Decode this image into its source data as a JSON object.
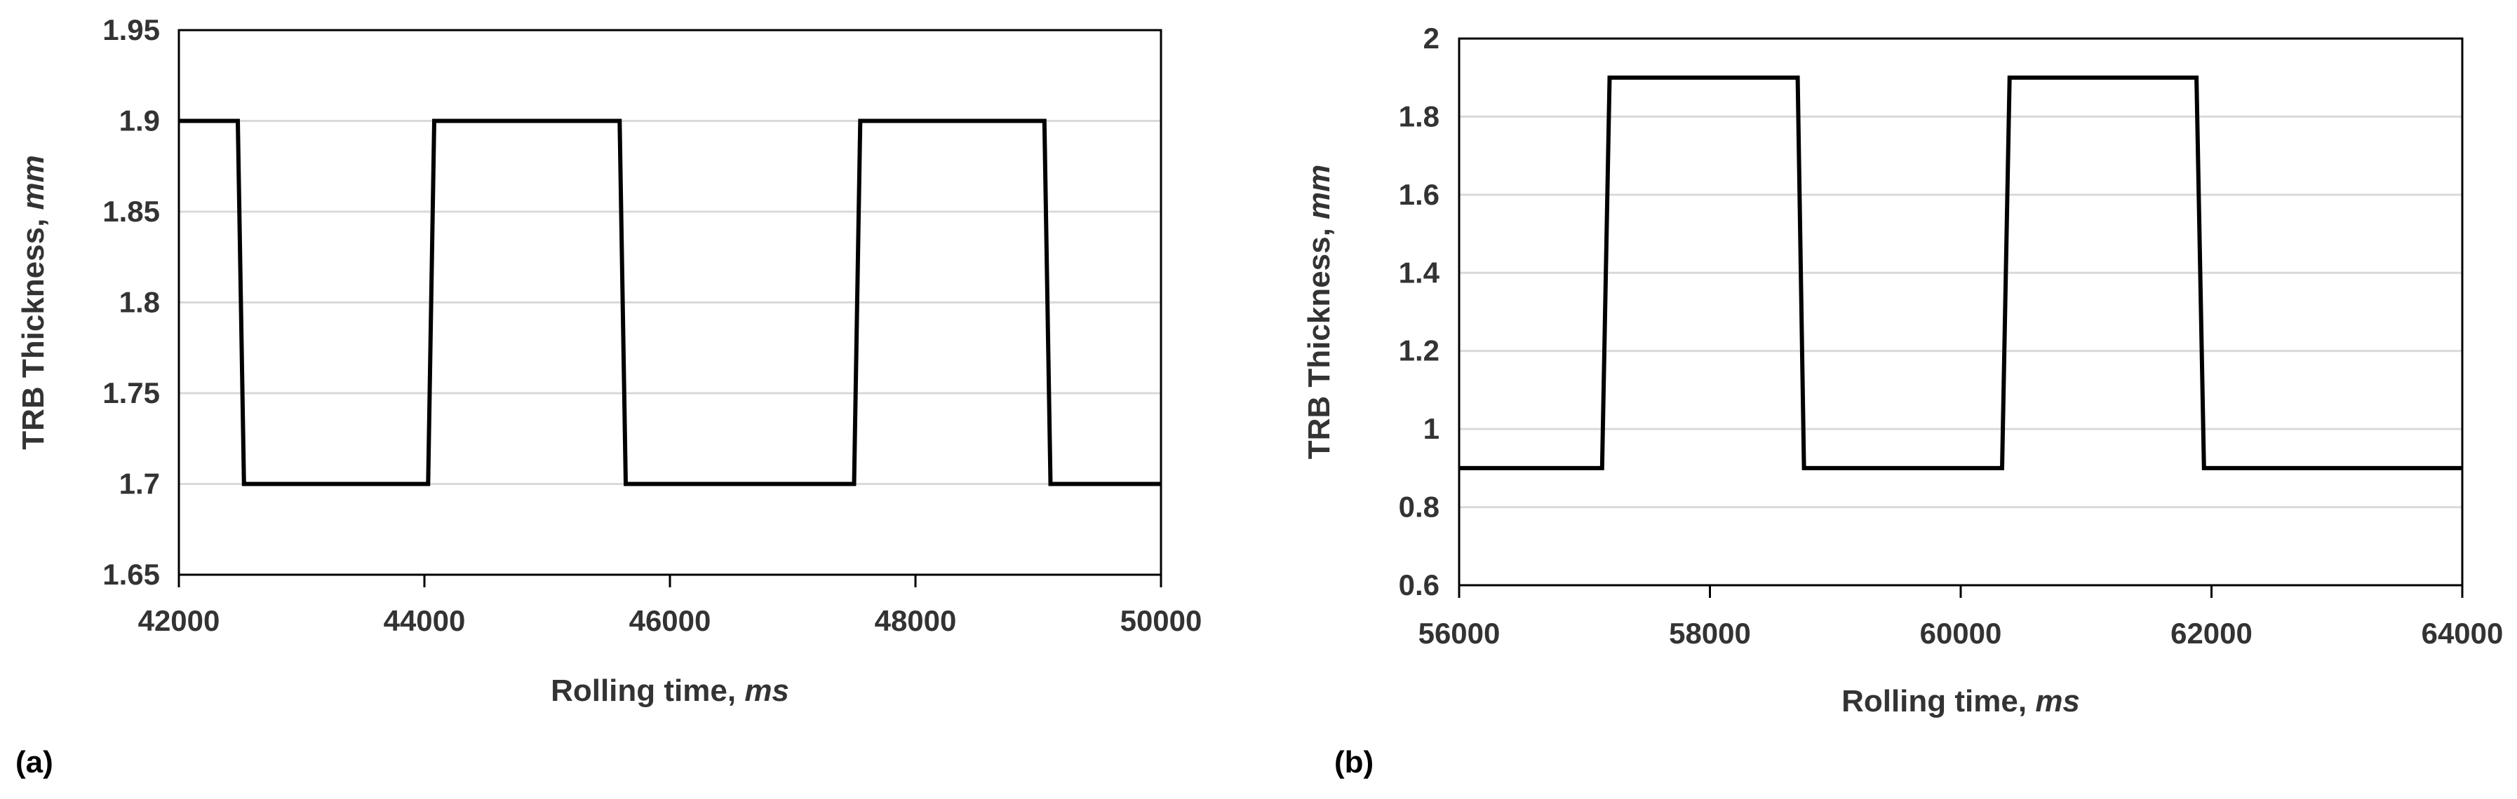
{
  "chart_data": [
    {
      "type": "line",
      "panel_label": "(a)",
      "title": "",
      "xlabel": "Rolling time, ",
      "xlabel_unit": "ms",
      "ylabel": "TRB Thickness, ",
      "ylabel_unit": "mm",
      "xlim": [
        42000,
        50000
      ],
      "ylim": [
        1.65,
        1.95
      ],
      "xticks": [
        42000,
        44000,
        46000,
        48000,
        50000
      ],
      "xtick_labels": [
        "42000",
        "44000",
        "46000",
        "48000",
        "50000"
      ],
      "yticks": [
        1.65,
        1.7,
        1.75,
        1.8,
        1.85,
        1.9,
        1.95
      ],
      "ytick_labels": [
        "1.65",
        "1.7",
        "1.75",
        "1.8",
        "1.85",
        "1.9",
        "1.95"
      ],
      "grid": "horizontal",
      "legend": "none",
      "series": [
        {
          "color": "#000000",
          "x": [
            42000,
            42480,
            42530,
            44030,
            44080,
            45590,
            45640,
            47500,
            47550,
            49050,
            49100,
            50000
          ],
          "y": [
            1.9,
            1.9,
            1.7,
            1.7,
            1.9,
            1.9,
            1.7,
            1.7,
            1.9,
            1.9,
            1.7,
            1.7
          ]
        }
      ]
    },
    {
      "type": "line",
      "panel_label": "(b)",
      "title": "",
      "xlabel": "Rolling time, ",
      "xlabel_unit": "ms",
      "ylabel": "TRB Thickness, ",
      "ylabel_unit": "mm",
      "xlim": [
        56000,
        64000
      ],
      "ylim": [
        0.6,
        2.0
      ],
      "xticks": [
        56000,
        58000,
        60000,
        62000,
        64000
      ],
      "xtick_labels": [
        "56000",
        "58000",
        "60000",
        "62000",
        "64000"
      ],
      "yticks": [
        0.6,
        0.8,
        1.0,
        1.2,
        1.4,
        1.6,
        1.8,
        2.0
      ],
      "ytick_labels": [
        "0.6",
        "0.8",
        "1",
        "1.2",
        "1.4",
        "1.6",
        "1.8",
        "2"
      ],
      "grid": "horizontal",
      "legend": "none",
      "series": [
        {
          "color": "#000000",
          "x": [
            56000,
            57140,
            57200,
            58700,
            58750,
            60330,
            60390,
            61880,
            61940,
            64000
          ],
          "y": [
            0.9,
            0.9,
            1.9,
            1.9,
            0.9,
            0.9,
            1.9,
            1.9,
            0.9,
            0.9
          ]
        }
      ]
    }
  ]
}
